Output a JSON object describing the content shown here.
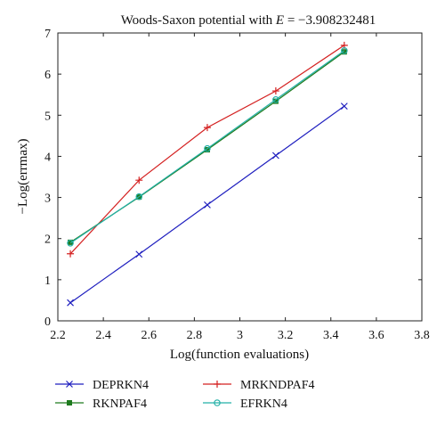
{
  "chart_data": {
    "type": "line",
    "title_prefix": "Woods-Saxon potential with ",
    "title_var": "E",
    "title_suffix": " = −3.908232481",
    "xlabel": "Log(function evaluations)",
    "ylabel": "−Log(errmax)",
    "xlim": [
      2.2,
      3.8
    ],
    "ylim": [
      0,
      7
    ],
    "xticks": [
      "2.2",
      "2.4",
      "2.6",
      "2.8",
      "3",
      "3.2",
      "3.4",
      "3.6",
      "3.8"
    ],
    "yticks": [
      "0",
      "1",
      "2",
      "3",
      "4",
      "5",
      "6",
      "7"
    ],
    "grid": false,
    "legend_position": "below",
    "series": [
      {
        "name": "DEPRKN4",
        "color": "#1f1fbf",
        "marker": "x",
        "x": [
          2.255,
          2.557,
          2.857,
          3.158,
          3.459
        ],
        "y": [
          0.44,
          1.62,
          2.82,
          4.02,
          5.22
        ]
      },
      {
        "name": "MRKNDPAF4",
        "color": "#d42020",
        "marker": "plus",
        "x": [
          2.255,
          2.557,
          2.857,
          3.158,
          3.459
        ],
        "y": [
          1.63,
          3.42,
          4.7,
          5.59,
          6.7
        ]
      },
      {
        "name": "RKNPAF4",
        "color": "#1e7a1e",
        "marker": "square",
        "x": [
          2.255,
          2.557,
          2.857,
          3.158,
          3.459
        ],
        "y": [
          1.91,
          3.01,
          4.16,
          5.34,
          6.54
        ]
      },
      {
        "name": "EFRKN4",
        "color": "#23b0a6",
        "marker": "circle",
        "x": [
          2.255,
          2.557,
          2.857,
          3.158,
          3.459
        ],
        "y": [
          1.89,
          3.02,
          4.19,
          5.38,
          6.57
        ]
      }
    ]
  }
}
